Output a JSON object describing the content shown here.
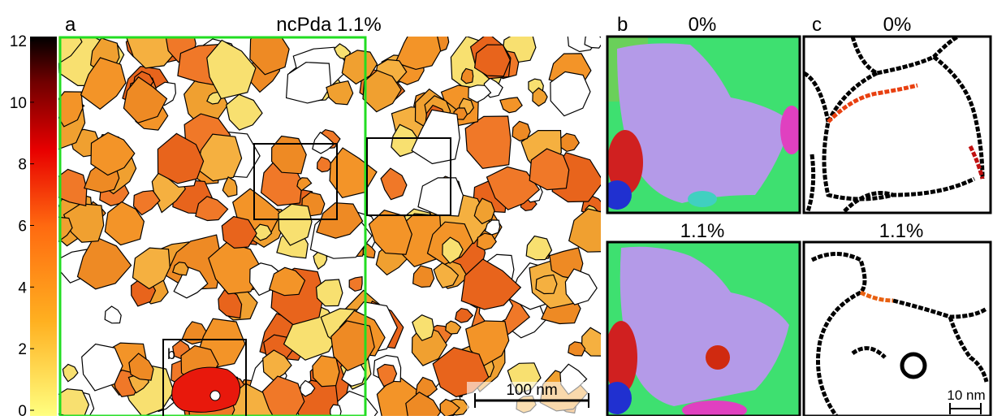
{
  "colorbar": {
    "lim": [
      0,
      12
    ],
    "ticks": [
      0,
      2,
      4,
      6,
      8,
      10,
      12
    ]
  },
  "panel_a": {
    "label": "a",
    "title": "ncPda 1.1%",
    "inset_label": "b",
    "scale_bar": "100 nm"
  },
  "panel_b": {
    "label": "b",
    "top_title": "0%",
    "bottom_title": "1.1%"
  },
  "panel_c": {
    "label": "c",
    "top_title": "0%",
    "bottom_title": "1.1%",
    "scale_bar": "10 nm"
  }
}
